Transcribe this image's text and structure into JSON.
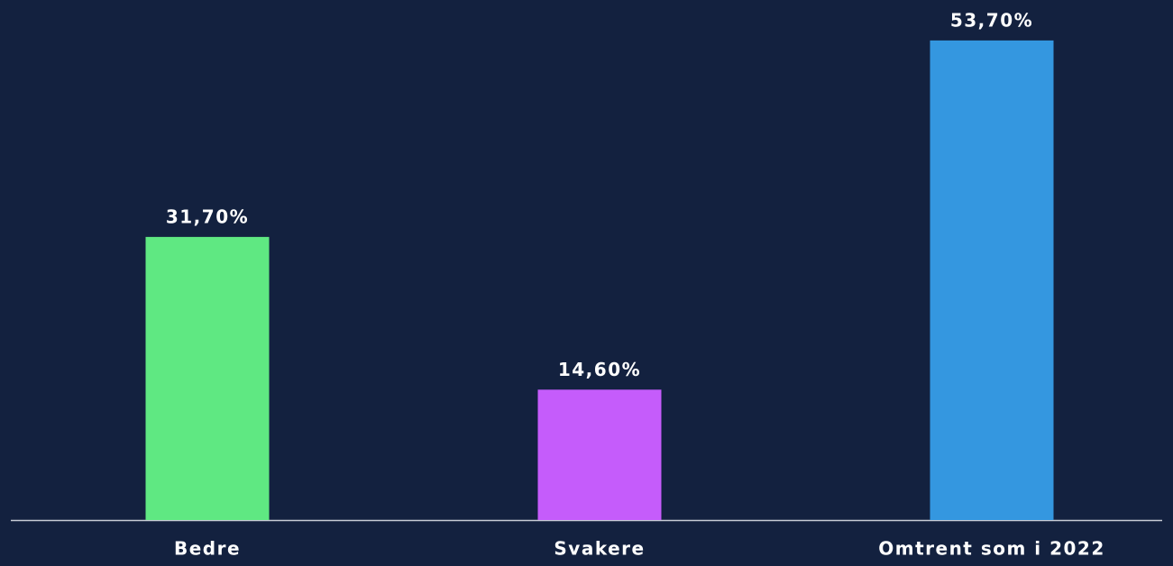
{
  "chart_data": {
    "type": "bar",
    "categories": [
      "Bedre",
      "Svakere",
      "Omtrent som i 2022"
    ],
    "values": [
      31.7,
      14.6,
      53.7
    ],
    "value_labels": [
      "31,70%",
      "14,60%",
      "53,70%"
    ],
    "colors": [
      "#5fe882",
      "#c55cfb",
      "#3497e0"
    ],
    "ylim": [
      0,
      55
    ]
  }
}
